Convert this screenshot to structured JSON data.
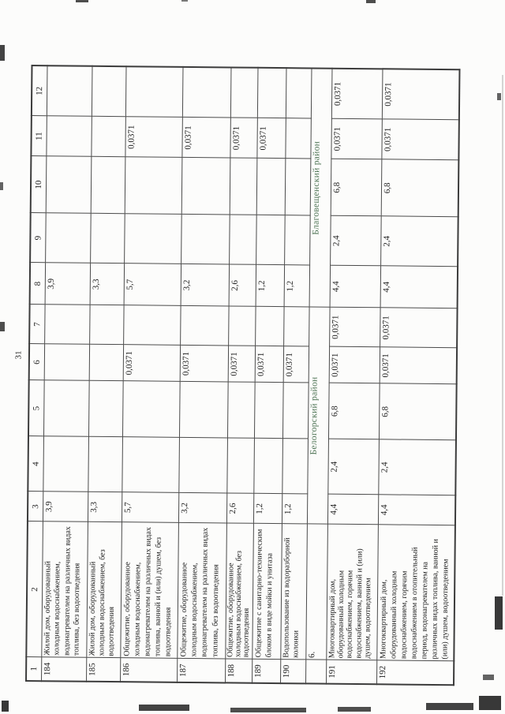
{
  "page": {
    "number_label": "31"
  },
  "colors": {
    "section_title_green": "#4e7455",
    "ink": "#1d1d1d",
    "grid_line": "#4b4b4b"
  },
  "document_table": {
    "column_headers": [
      "1",
      "2",
      "3",
      "4",
      "5",
      "6",
      "7",
      "8",
      "9",
      "10",
      "11",
      "12"
    ],
    "rows": [
      {
        "type": "data",
        "num": "184",
        "desc_lines": [
          "Жилой дом, оборудованный",
          "холодным водоснабжением,",
          "водонагревателем на различных видах",
          "топлива, без водоотведения"
        ],
        "values": [
          "3,9",
          "",
          "",
          "",
          "",
          "3,9",
          "",
          "",
          "",
          ""
        ]
      },
      {
        "type": "data",
        "num": "185",
        "desc_lines": [
          "Жилой дом, оборудованный",
          "холодным водоснабжением, без",
          "водоотведения"
        ],
        "values": [
          "3,3",
          "",
          "",
          "",
          "",
          "3,3",
          "",
          "",
          "",
          ""
        ]
      },
      {
        "type": "data",
        "num": "186",
        "desc_lines": [
          "Общежитие, оборудованное",
          "холодным водоснабжением,",
          "водонагревателем на различных видах",
          "топлива, ванной и (или) душем, без",
          "водоотведения"
        ],
        "values": [
          "5,7",
          "",
          "",
          "0,0371",
          "",
          "5,7",
          "",
          "",
          "0,0371",
          ""
        ]
      },
      {
        "type": "data",
        "num": "187",
        "desc_lines": [
          "Общежитие, оборудованное",
          "холодным водоснабжением,",
          "водонагревателем на различных видах",
          "топлива, без водоотведения"
        ],
        "values": [
          "3,2",
          "",
          "",
          "0,0371",
          "",
          "3,2",
          "",
          "",
          "0,0371",
          ""
        ]
      },
      {
        "type": "data",
        "num": "188",
        "desc_lines": [
          "Общежитие, оборудованное",
          "холодным водоснабжением, без",
          "водоотведения"
        ],
        "values": [
          "2,6",
          "",
          "",
          "0,0371",
          "",
          "2,6",
          "",
          "",
          "0,0371",
          ""
        ]
      },
      {
        "type": "data",
        "num": "189",
        "desc_lines": [
          "Общежитие с санитарно-техническим",
          "блоком в виде мойки и унитаза"
        ],
        "values": [
          "1,2",
          "",
          "",
          "0,0371",
          "",
          "1,2",
          "",
          "",
          "0,0371",
          ""
        ]
      },
      {
        "type": "data",
        "num": "190",
        "desc_lines": [
          "Водопользование из водоразборной",
          "колонки"
        ],
        "values": [
          "1,2",
          "",
          "",
          "0,0371",
          "",
          "1,2",
          "",
          "",
          "",
          ""
        ]
      },
      {
        "type": "section",
        "index_label": "6.",
        "left_title": "Белогорский район",
        "right_title": "Благовещенский район"
      },
      {
        "type": "data",
        "num": "191",
        "desc_lines": [
          "Многоквартирный дом,",
          "оборудованный холодным",
          "водоснабжением, горячим",
          "водоснабжением, ванной и (или)",
          "душем, водоотведением"
        ],
        "values": [
          "4,4",
          "2,4",
          "6,8",
          "0,0371",
          "0,0371",
          "4,4",
          "2,4",
          "6,8",
          "0,0371",
          "0,0371"
        ]
      },
      {
        "type": "data",
        "num": "192",
        "desc_lines": [
          "Многоквартирный дом,",
          "оборудованный холодным",
          "водоснабжением, горячим",
          "водоснабжением в отопительный",
          "период, водонагревателем на",
          "различных видах топлива, ванной и",
          "(или) душем, водоотведением"
        ],
        "values": [
          "4,4",
          "2,4",
          "6,8",
          "0,0371",
          "0,0371",
          "4,4",
          "2,4",
          "6,8",
          "0,0371",
          "0,0371"
        ]
      }
    ]
  }
}
